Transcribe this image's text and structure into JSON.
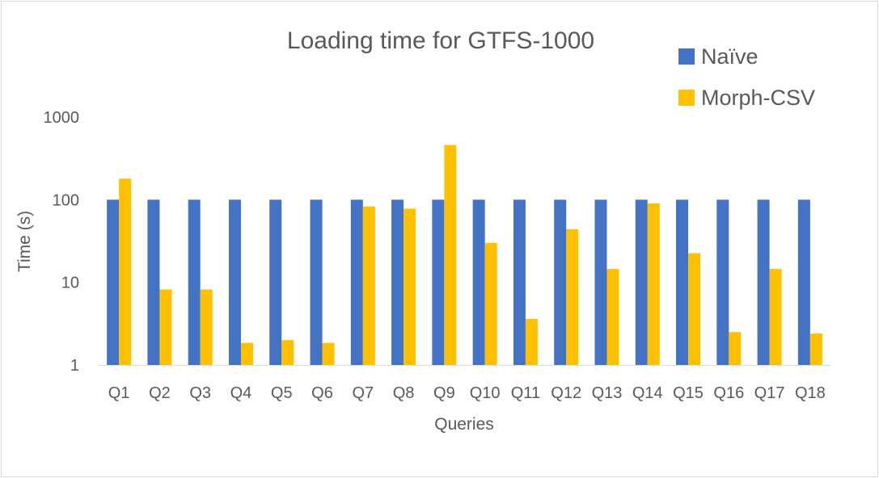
{
  "chart_data": {
    "type": "bar",
    "title": "Loading time for GTFS-1000",
    "xlabel": "Queries",
    "ylabel": "Time (s)",
    "yscale": "log",
    "ylim": [
      1,
      1000
    ],
    "yticks": [
      1,
      10,
      100,
      1000
    ],
    "ytick_labels": [
      "1",
      "10",
      "100",
      "1000"
    ],
    "categories": [
      "Q1",
      "Q2",
      "Q3",
      "Q4",
      "Q5",
      "Q6",
      "Q7",
      "Q8",
      "Q9",
      "Q10",
      "Q11",
      "Q12",
      "Q13",
      "Q14",
      "Q15",
      "Q16",
      "Q17",
      "Q18"
    ],
    "series": [
      {
        "name": "Naïve",
        "color": "#4472c4",
        "values": [
          100,
          100,
          100,
          100,
          100,
          100,
          100,
          100,
          100,
          100,
          100,
          100,
          100,
          100,
          100,
          100,
          100,
          100
        ]
      },
      {
        "name": "Morph-CSV",
        "color": "#ffc000",
        "values": [
          180,
          8.2,
          8.2,
          1.85,
          2.0,
          1.85,
          83,
          78,
          460,
          30,
          3.6,
          44,
          14.5,
          90,
          22.5,
          2.5,
          14.5,
          2.4
        ]
      }
    ],
    "legend_position": "top-right",
    "grid": false
  }
}
